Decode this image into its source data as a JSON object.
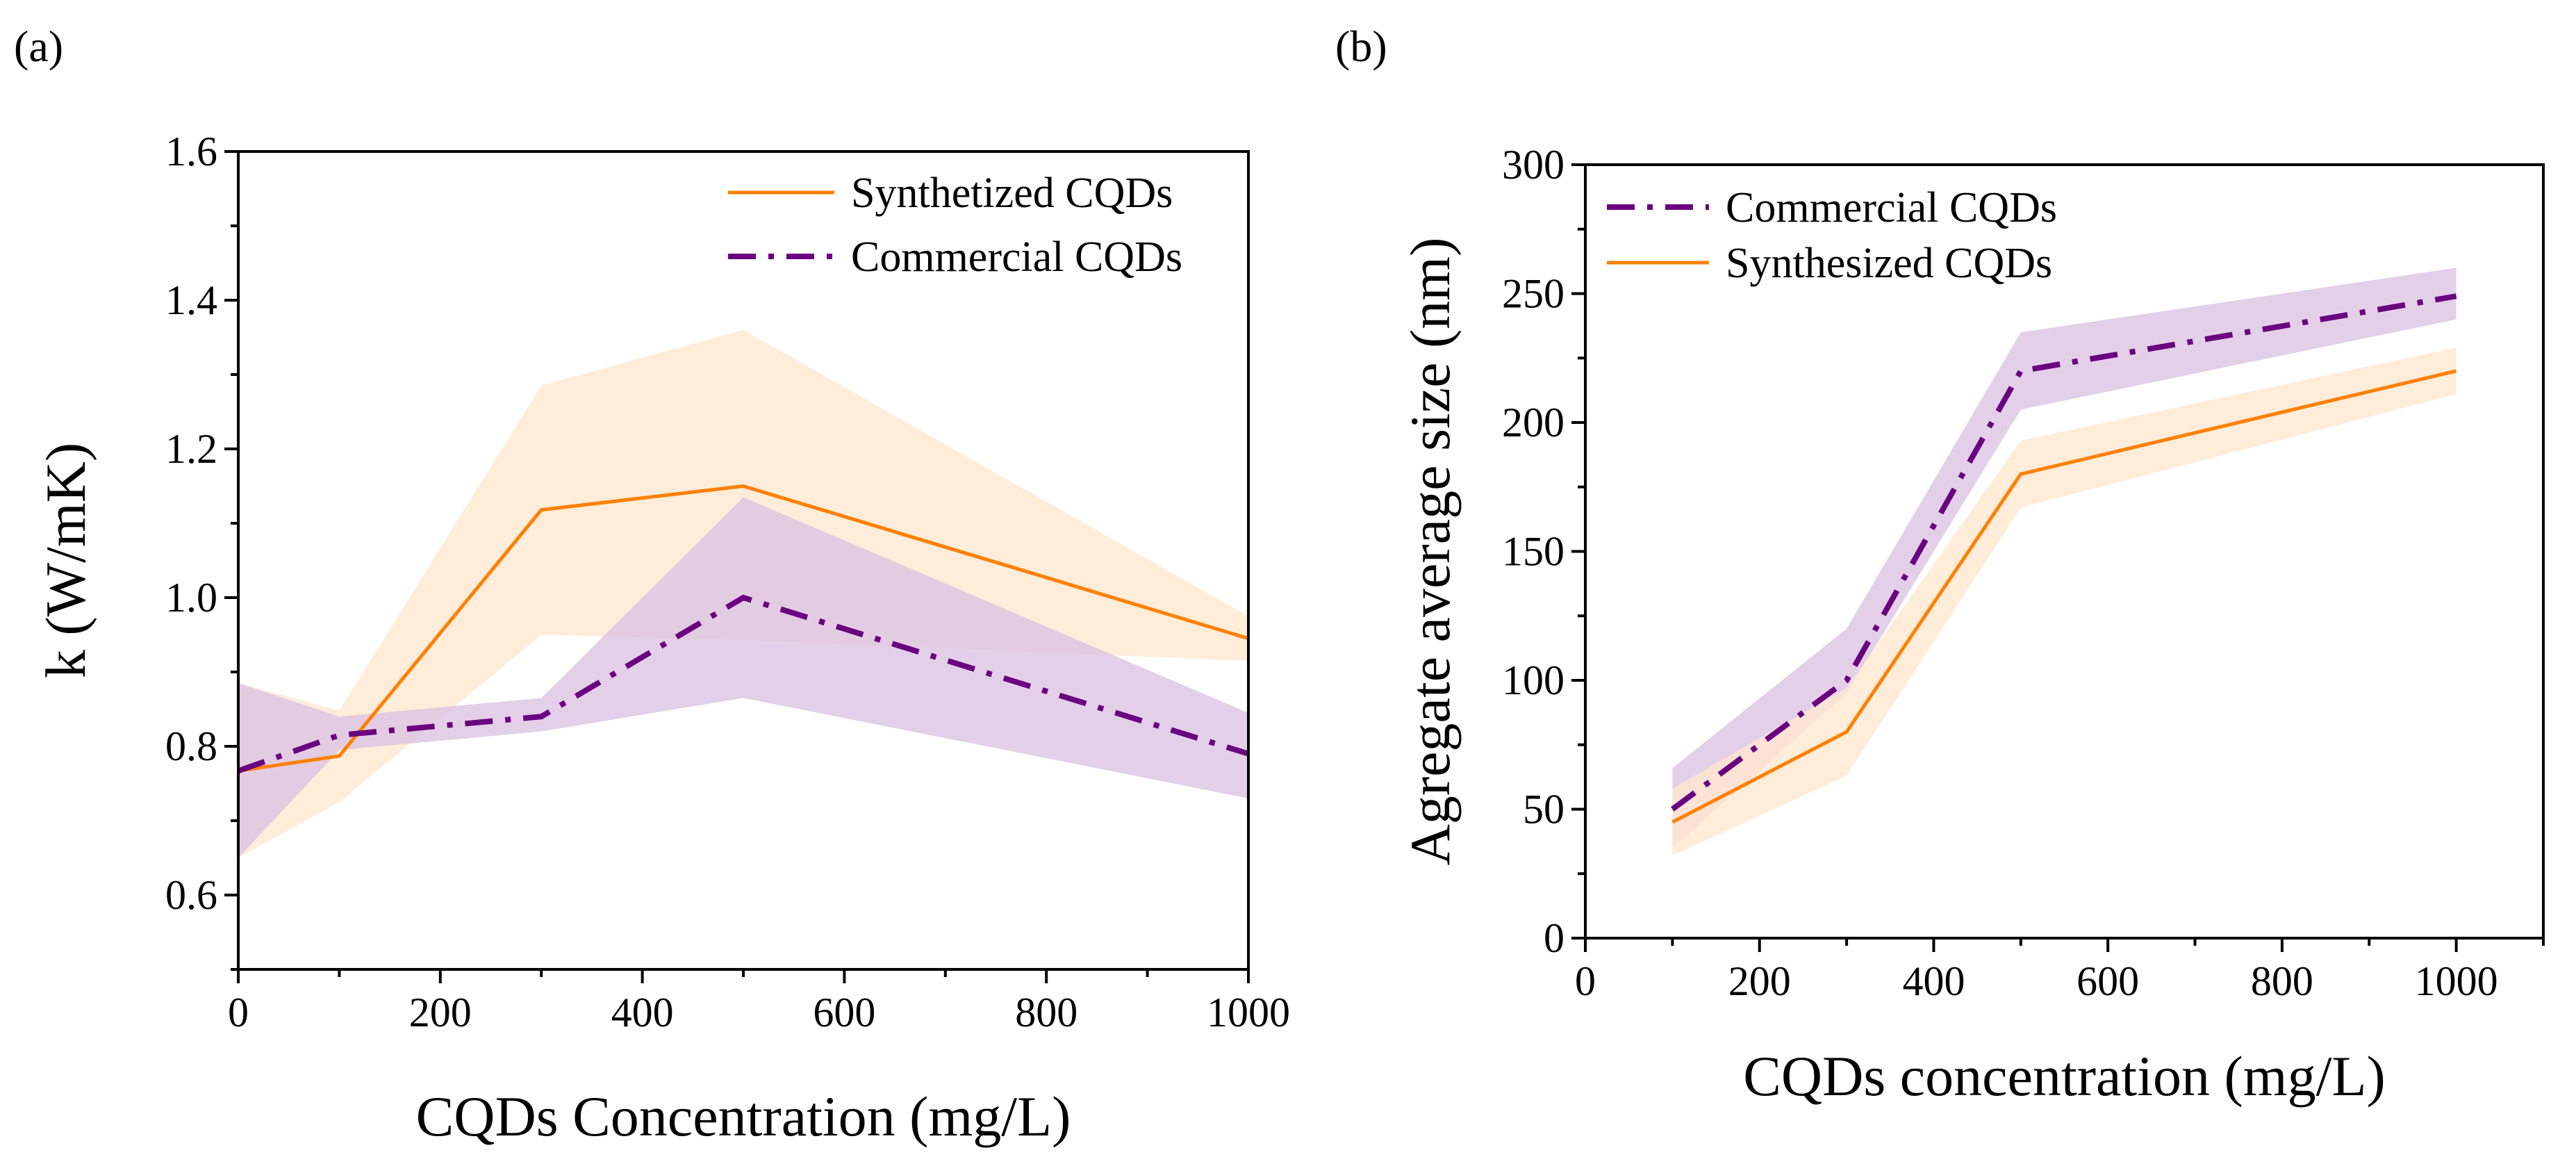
{
  "colors": {
    "synthesized": "#ff8000",
    "synthesized_band": "#ffe7cf",
    "commercial": "#6a0080",
    "commercial_band": "#dcc4e2"
  },
  "chart_data": [
    {
      "panel_label": "(a)",
      "type": "line",
      "xlabel": "CQDs Concentration (mg/L)",
      "ylabel": "k (W/mK)",
      "xlim": [
        0,
        1000
      ],
      "ylim": [
        0.5,
        1.6
      ],
      "xticks": [
        0,
        200,
        400,
        600,
        800,
        1000
      ],
      "yticks": [
        0.6,
        0.8,
        1.0,
        1.2,
        1.4,
        1.6
      ],
      "ytick_labels": [
        "0.6",
        "0.8",
        "1.0",
        "1.2",
        "1.4",
        "1.6"
      ],
      "x_minor_step": 100,
      "y_minor_step": 0.1,
      "grid": false,
      "legend_position": "top-right",
      "series": [
        {
          "name": "Synthetized CQDs",
          "key": "synthesized",
          "style": "solid",
          "x": [
            0,
            100,
            300,
            500,
            1000
          ],
          "y": [
            0.767,
            0.787,
            1.118,
            1.15,
            0.945
          ],
          "upper": [
            0.885,
            0.848,
            1.285,
            1.36,
            0.975
          ],
          "lower": [
            0.65,
            0.725,
            0.95,
            0.943,
            0.915
          ]
        },
        {
          "name": "Commercial CQDs",
          "key": "commercial",
          "style": "dashdot",
          "x": [
            0,
            100,
            300,
            500,
            1000
          ],
          "y": [
            0.767,
            0.815,
            0.84,
            1.0,
            0.79
          ],
          "upper": [
            0.885,
            0.84,
            0.865,
            1.135,
            0.845
          ],
          "lower": [
            0.65,
            0.795,
            0.82,
            0.865,
            0.73
          ]
        }
      ]
    },
    {
      "panel_label": "(b)",
      "type": "line",
      "xlabel": "CQDs concentration (mg/L)",
      "ylabel": "Agregate average size (nm)",
      "xlim": [
        0,
        1100
      ],
      "ylim": [
        0,
        300
      ],
      "xticks": [
        0,
        200,
        400,
        600,
        800,
        1000
      ],
      "yticks": [
        0,
        50,
        100,
        150,
        200,
        250,
        300
      ],
      "ytick_labels": [
        "0",
        "50",
        "100",
        "150",
        "200",
        "250",
        "300"
      ],
      "x_minor_step": 100,
      "y_minor_step": 25,
      "grid": false,
      "legend_position": "top-left",
      "series": [
        {
          "name": "Commercial CQDs",
          "key": "commercial",
          "style": "dashdot",
          "x": [
            100,
            300,
            500,
            1000
          ],
          "y": [
            50,
            100,
            220,
            249
          ],
          "upper": [
            66,
            120,
            235,
            260
          ],
          "lower": [
            35,
            95,
            205,
            240
          ]
        },
        {
          "name": "Synthesized CQDs",
          "key": "synthesized",
          "style": "solid",
          "x": [
            100,
            300,
            500,
            1000
          ],
          "y": [
            45,
            80,
            180,
            220
          ],
          "upper": [
            58,
            97,
            193,
            229
          ],
          "lower": [
            32,
            63,
            167,
            211
          ]
        }
      ]
    }
  ]
}
